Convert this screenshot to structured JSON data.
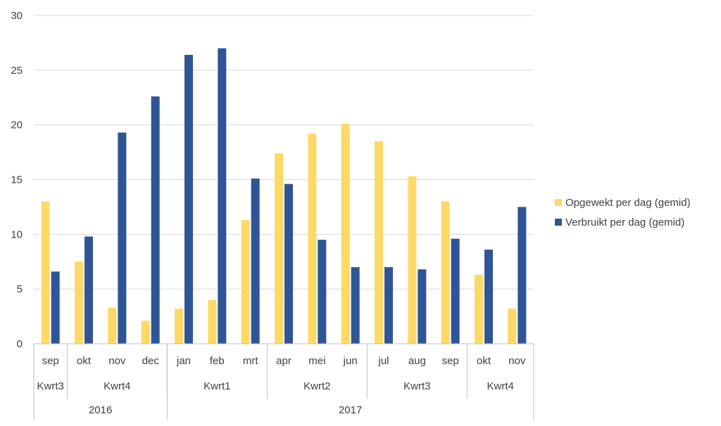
{
  "chart_data": {
    "type": "bar",
    "title": "",
    "xlabel": "",
    "ylabel": "",
    "ylim": [
      0,
      30
    ],
    "yticks": [
      0,
      5,
      10,
      15,
      20,
      25,
      30
    ],
    "grid": true,
    "legend_position": "right",
    "categories": [
      "sep",
      "okt",
      "nov",
      "dec",
      "jan",
      "feb",
      "mrt",
      "apr",
      "mei",
      "jun",
      "jul",
      "aug",
      "sep",
      "okt",
      "nov"
    ],
    "quarters": [
      {
        "label": "Kwrt3",
        "count": 1
      },
      {
        "label": "Kwrt4",
        "count": 3
      },
      {
        "label": "Kwrt1",
        "count": 3
      },
      {
        "label": "Kwrt2",
        "count": 3
      },
      {
        "label": "Kwrt3",
        "count": 3
      },
      {
        "label": "Kwrt4",
        "count": 2
      }
    ],
    "years": [
      {
        "label": "2016",
        "count": 4
      },
      {
        "label": "2017",
        "count": 11
      }
    ],
    "series": [
      {
        "name": "Opgewekt per dag (gemid)",
        "color": "#FFD966",
        "values": [
          13.0,
          7.5,
          3.3,
          2.1,
          3.2,
          4.0,
          11.3,
          17.4,
          19.2,
          20.1,
          18.5,
          15.3,
          13.0,
          6.3,
          3.2
        ]
      },
      {
        "name": "Verbruikt per dag (gemid)",
        "color": "#2F5597",
        "values": [
          6.6,
          9.8,
          19.3,
          22.6,
          26.4,
          27.0,
          15.1,
          14.6,
          9.5,
          7.0,
          7.0,
          6.8,
          9.6,
          8.6,
          12.5
        ]
      }
    ]
  }
}
